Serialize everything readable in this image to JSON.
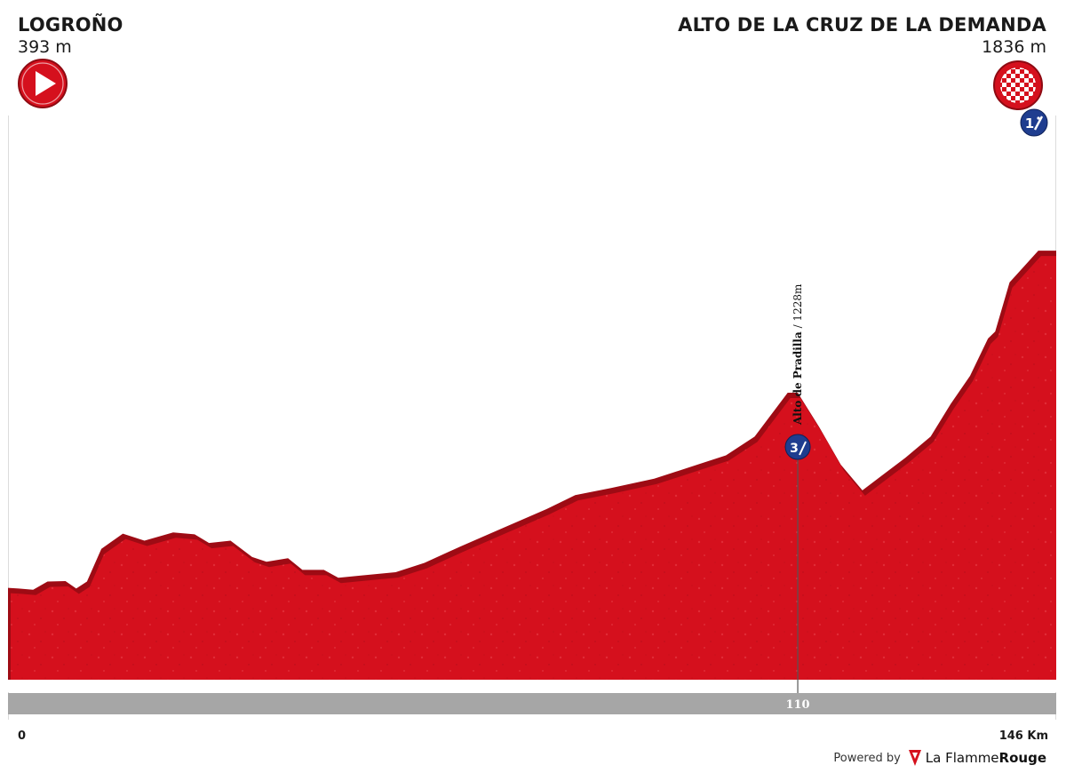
{
  "start": {
    "name": "LOGROÑO",
    "altitude": "393 m"
  },
  "finish": {
    "name": "ALTO DE LA CRUZ DE LA DEMANDA",
    "altitude": "1836 m"
  },
  "footer": {
    "powered_by": "Powered by",
    "brand_a": "La Flamme",
    "brand_b": "Rouge"
  },
  "icons": {
    "start": "start-arrow-icon",
    "finish": "checkered-finish-icon",
    "climb_hc": "climb-category-1-icon",
    "climb_cat3": "climb-category-3-icon"
  },
  "colors": {
    "profile_fill": "#d5101d",
    "profile_edge": "#9e0b14",
    "km_bar": "#a6a6a6",
    "climb_badge": "#1f3d8f"
  },
  "chart_data": {
    "type": "area",
    "x_unit": "km",
    "y_unit": "m",
    "xlim": [
      0,
      146
    ],
    "ylim": [
      0,
      2300
    ],
    "x_labels": {
      "start": "0",
      "end": "146 Km"
    },
    "markers": [
      {
        "km": 110,
        "label": "110"
      }
    ],
    "climbs": [
      {
        "name": "Alto de Pradilla / 1228m",
        "km": 110,
        "altitude": 1228,
        "category": "3"
      },
      {
        "name": "Alto de la Cruz de la Demanda",
        "km": 146,
        "altitude": 1836,
        "category": "1"
      }
    ],
    "profile": [
      [
        0,
        393
      ],
      [
        1.5,
        390
      ],
      [
        3.5,
        385
      ],
      [
        5.5,
        420
      ],
      [
        8,
        422
      ],
      [
        9.5,
        390
      ],
      [
        11,
        420
      ],
      [
        13,
        560
      ],
      [
        16,
        625
      ],
      [
        19,
        595
      ],
      [
        23,
        630
      ],
      [
        26,
        622
      ],
      [
        28,
        585
      ],
      [
        31,
        595
      ],
      [
        34,
        525
      ],
      [
        36,
        505
      ],
      [
        39,
        520
      ],
      [
        41,
        470
      ],
      [
        44,
        470
      ],
      [
        46,
        436
      ],
      [
        49,
        445
      ],
      [
        54,
        460
      ],
      [
        58,
        500
      ],
      [
        63,
        570
      ],
      [
        69,
        650
      ],
      [
        75,
        730
      ],
      [
        79,
        790
      ],
      [
        84,
        820
      ],
      [
        90,
        860
      ],
      [
        96,
        920
      ],
      [
        100,
        960
      ],
      [
        104,
        1040
      ],
      [
        108.6,
        1228
      ],
      [
        110,
        1228
      ],
      [
        113,
        1080
      ],
      [
        116,
        920
      ],
      [
        119,
        810
      ],
      [
        122,
        880
      ],
      [
        125,
        950
      ],
      [
        128.5,
        1040
      ],
      [
        131.3,
        1180
      ],
      [
        134,
        1300
      ],
      [
        136.5,
        1460
      ],
      [
        137.5,
        1490
      ],
      [
        139.5,
        1700
      ],
      [
        143.5,
        1836
      ],
      [
        146,
        1836
      ]
    ]
  }
}
